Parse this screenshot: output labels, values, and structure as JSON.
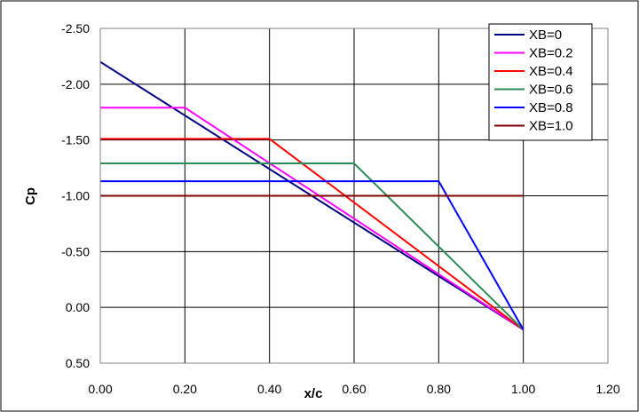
{
  "chart_data": {
    "type": "line",
    "title": "",
    "xlabel": "x/c",
    "ylabel": "Cp",
    "xlim": [
      0,
      1.2
    ],
    "ylim": [
      0.5,
      -2.5
    ],
    "y_axis_inverted": true,
    "grid": true,
    "legend_position": "top-right",
    "x_ticks": [
      "0.00",
      "0.20",
      "0.40",
      "0.60",
      "0.80",
      "1.00",
      "1.20"
    ],
    "y_ticks": [
      "-2.50",
      "-2.00",
      "-1.50",
      "-1.00",
      "-0.50",
      "0.00",
      "0.50"
    ],
    "series": [
      {
        "name": "XB=0",
        "color": "#000080",
        "points": [
          [
            0,
            -2.2
          ],
          [
            1.0,
            0.2
          ]
        ]
      },
      {
        "name": "XB=0.2",
        "color": "#ff00ff",
        "points": [
          [
            0,
            -1.79
          ],
          [
            0.2,
            -1.79
          ],
          [
            1.0,
            0.2
          ]
        ]
      },
      {
        "name": "XB=0.4",
        "color": "#ff0000",
        "points": [
          [
            0,
            -1.51
          ],
          [
            0.4,
            -1.51
          ],
          [
            1.0,
            0.2
          ]
        ]
      },
      {
        "name": "XB=0.6",
        "color": "#2e8b57",
        "points": [
          [
            0,
            -1.29
          ],
          [
            0.6,
            -1.29
          ],
          [
            1.0,
            0.2
          ]
        ]
      },
      {
        "name": "XB=0.8",
        "color": "#0000ff",
        "points": [
          [
            0,
            -1.13
          ],
          [
            0.8,
            -1.13
          ],
          [
            1.0,
            0.2
          ]
        ]
      },
      {
        "name": "XB=1.0",
        "color": "#800000",
        "points": [
          [
            0,
            -1.0
          ],
          [
            1.0,
            -1.0
          ]
        ]
      }
    ]
  }
}
